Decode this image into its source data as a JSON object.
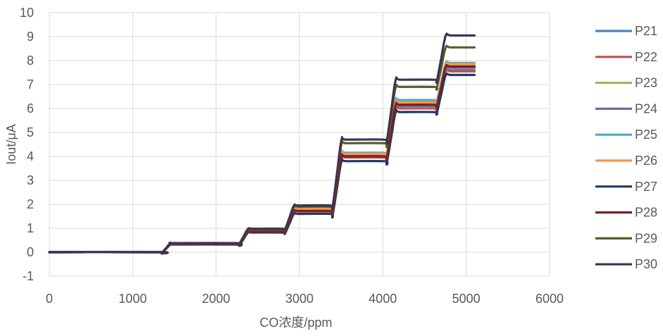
{
  "chart_data": {
    "type": "line",
    "title": "",
    "xlabel": "CO浓度/ppm",
    "ylabel": "Iout/μA",
    "xlim": [
      0,
      6000
    ],
    "ylim": [
      -1,
      10
    ],
    "xticks": [
      0,
      1000,
      2000,
      3000,
      4000,
      5000,
      6000
    ],
    "yticks": [
      -1,
      0,
      1,
      2,
      3,
      4,
      5,
      6,
      7,
      8,
      9,
      10
    ],
    "grid": true,
    "legend_position": "right",
    "x_end": 5100,
    "series": [
      {
        "name": "P21",
        "color": "#4F81BD",
        "levels": [
          0,
          0.35,
          0.85,
          1.75,
          4.0,
          6.1,
          7.6
        ]
      },
      {
        "name": "P22",
        "color": "#C0504D",
        "levels": [
          0,
          0.34,
          0.85,
          1.7,
          3.95,
          6.0,
          7.55
        ]
      },
      {
        "name": "P23",
        "color": "#9BBB59",
        "levels": [
          0,
          0.36,
          0.95,
          1.8,
          4.1,
          6.3,
          7.8
        ]
      },
      {
        "name": "P24",
        "color": "#8064A2",
        "levels": [
          0,
          0.35,
          0.9,
          1.75,
          4.05,
          6.2,
          7.7
        ]
      },
      {
        "name": "P25",
        "color": "#4BACC6",
        "levels": [
          0,
          0.36,
          0.9,
          1.85,
          4.15,
          6.35,
          7.9
        ]
      },
      {
        "name": "P26",
        "color": "#F79646",
        "levels": [
          0,
          0.35,
          0.88,
          1.8,
          4.1,
          6.25,
          7.85
        ]
      },
      {
        "name": "P27",
        "color": "#1F3864",
        "levels": [
          0,
          0.32,
          0.82,
          1.6,
          3.8,
          5.85,
          7.4
        ]
      },
      {
        "name": "P28",
        "color": "#7F1F1F",
        "levels": [
          0,
          0.34,
          0.86,
          1.72,
          4.0,
          6.15,
          7.75
        ]
      },
      {
        "name": "P29",
        "color": "#4F6228",
        "levels": [
          0,
          0.37,
          0.95,
          1.9,
          4.55,
          6.9,
          8.55
        ]
      },
      {
        "name": "P30",
        "color": "#403152",
        "levels": [
          0,
          0.38,
          0.98,
          1.95,
          4.7,
          7.2,
          9.05
        ]
      }
    ],
    "transitions": [
      1400,
      2330,
      2880,
      3450,
      4100,
      4700
    ]
  }
}
